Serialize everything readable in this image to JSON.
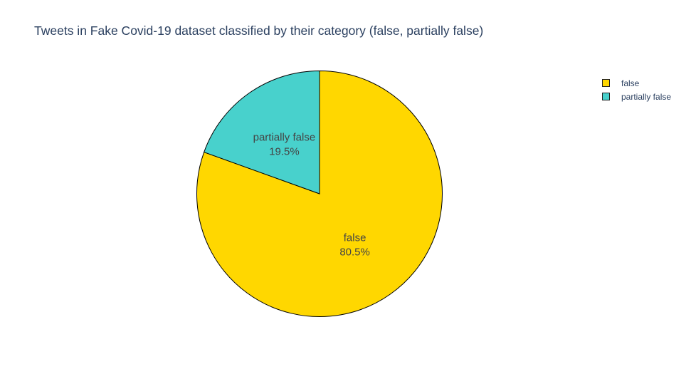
{
  "chart_data": {
    "type": "pie",
    "title": "Tweets in Fake Covid-19 dataset classified by their category (false, partially false)",
    "categories": [
      "false",
      "partially false"
    ],
    "values": [
      80.5,
      19.5
    ],
    "percent_labels": [
      "80.5%",
      "19.5%"
    ],
    "colors": [
      "#FFD700",
      "#48D1CC"
    ],
    "slice_border_color": "#000000",
    "legend": {
      "placement": "top-right",
      "items": [
        {
          "label": "false",
          "color": "#FFD700"
        },
        {
          "label": "partially false",
          "color": "#48D1CC"
        }
      ]
    }
  }
}
